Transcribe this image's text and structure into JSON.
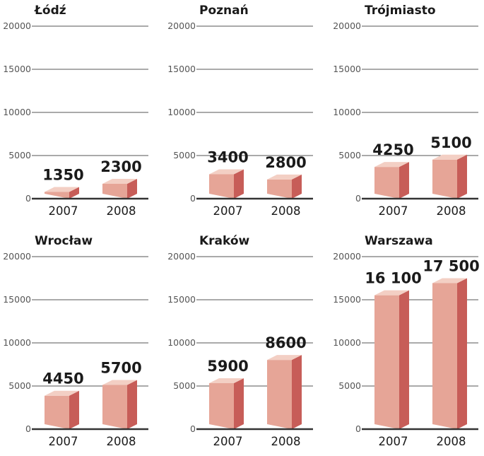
{
  "chart_data": [
    {
      "type": "bar",
      "title": "Łódź",
      "categories": [
        "2007",
        "2008"
      ],
      "values": [
        1350,
        2300
      ],
      "value_labels": [
        "1350",
        "2300"
      ],
      "yticks": [
        "0",
        "5000",
        "10000",
        "15000",
        "20000"
      ],
      "ylim": [
        0,
        20000
      ]
    },
    {
      "type": "bar",
      "title": "Poznań",
      "categories": [
        "2007",
        "2008"
      ],
      "values": [
        3400,
        2800
      ],
      "value_labels": [
        "3400",
        "2800"
      ],
      "yticks": [
        "0",
        "5000",
        "10000",
        "15000",
        "20000"
      ],
      "ylim": [
        0,
        20000
      ]
    },
    {
      "type": "bar",
      "title": "Trójmiasto",
      "categories": [
        "2007",
        "2008"
      ],
      "values": [
        4250,
        5100
      ],
      "value_labels": [
        "4250",
        "5100"
      ],
      "yticks": [
        "0",
        "5000",
        "10000",
        "15000",
        "20000"
      ],
      "ylim": [
        0,
        20000
      ]
    },
    {
      "type": "bar",
      "title": "Wrocław",
      "categories": [
        "2007",
        "2008"
      ],
      "values": [
        4450,
        5700
      ],
      "value_labels": [
        "4450",
        "5700"
      ],
      "yticks": [
        "0",
        "5000",
        "10000",
        "15000",
        "20000"
      ],
      "ylim": [
        0,
        20000
      ]
    },
    {
      "type": "bar",
      "title": "Kraków",
      "categories": [
        "2007",
        "2008"
      ],
      "values": [
        5900,
        8600
      ],
      "value_labels": [
        "5900",
        "8600"
      ],
      "yticks": [
        "0",
        "5000",
        "10000",
        "15000",
        "20000"
      ],
      "ylim": [
        0,
        20000
      ]
    },
    {
      "type": "bar",
      "title": "Warszawa",
      "categories": [
        "2007",
        "2008"
      ],
      "values": [
        16100,
        17500
      ],
      "value_labels": [
        "16 100",
        "17 500"
      ],
      "yticks": [
        "0",
        "5000",
        "10000",
        "15000",
        "20000"
      ],
      "ylim": [
        0,
        20000
      ]
    }
  ],
  "colors": {
    "bar_front": "#e6a597",
    "bar_side": "#c75d58",
    "bar_top": "#f3cfc4",
    "grid": "#555555",
    "baseline": "#333333",
    "text": "#1a1a1a",
    "tick": "#555555"
  }
}
